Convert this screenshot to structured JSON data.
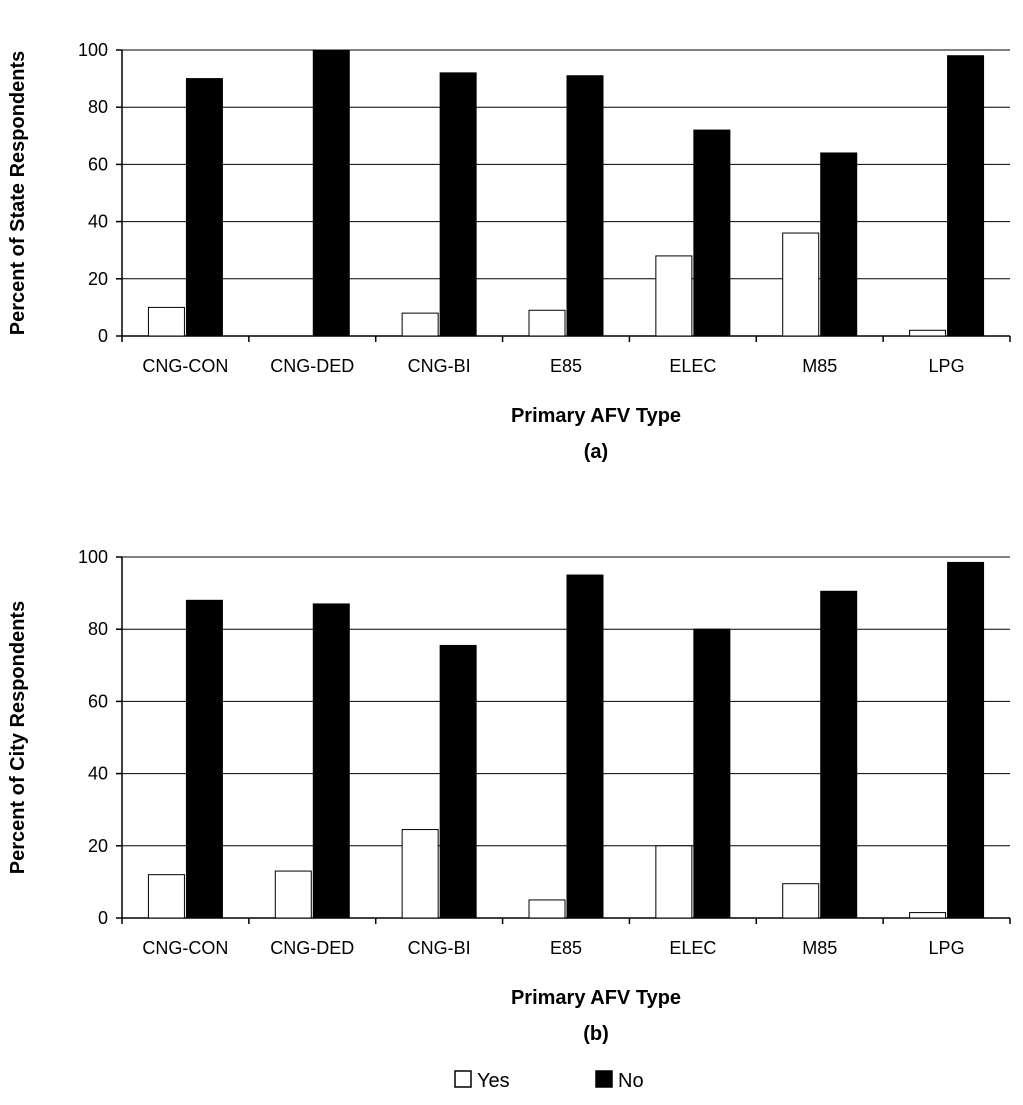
{
  "chart_data": [
    {
      "type": "bar",
      "panel_label": "(a)",
      "title": "",
      "xlabel": "Primary AFV Type",
      "ylabel": "Percent of State Respondents",
      "ylim": [
        0,
        100
      ],
      "yticks": [
        0,
        20,
        40,
        60,
        80,
        100
      ],
      "grid": true,
      "categories": [
        "CNG-CON",
        "CNG-DED",
        "CNG-BI",
        "E85",
        "ELEC",
        "M85",
        "LPG"
      ],
      "series": [
        {
          "name": "Yes",
          "color": "#ffffff",
          "values": [
            10,
            0,
            8,
            9,
            28,
            36,
            2
          ]
        },
        {
          "name": "No",
          "color": "#000000",
          "values": [
            90,
            100,
            92,
            91,
            72,
            64,
            98
          ]
        }
      ]
    },
    {
      "type": "bar",
      "panel_label": "(b)",
      "title": "",
      "xlabel": "Primary AFV Type",
      "ylabel": "Percent of City Respondents",
      "ylim": [
        0,
        100
      ],
      "yticks": [
        0,
        20,
        40,
        60,
        80,
        100
      ],
      "grid": true,
      "categories": [
        "CNG-CON",
        "CNG-DED",
        "CNG-BI",
        "E85",
        "ELEC",
        "M85",
        "LPG"
      ],
      "series": [
        {
          "name": "Yes",
          "color": "#ffffff",
          "values": [
            12,
            13,
            24.5,
            5,
            20,
            9.5,
            1.5
          ]
        },
        {
          "name": "No",
          "color": "#000000",
          "values": [
            88,
            87,
            75.5,
            95,
            80,
            90.5,
            98.5
          ]
        }
      ]
    }
  ],
  "legend": {
    "placement": "bottom-center",
    "items": [
      {
        "label": "Yes",
        "color": "#ffffff"
      },
      {
        "label": "No",
        "color": "#000000"
      }
    ]
  }
}
